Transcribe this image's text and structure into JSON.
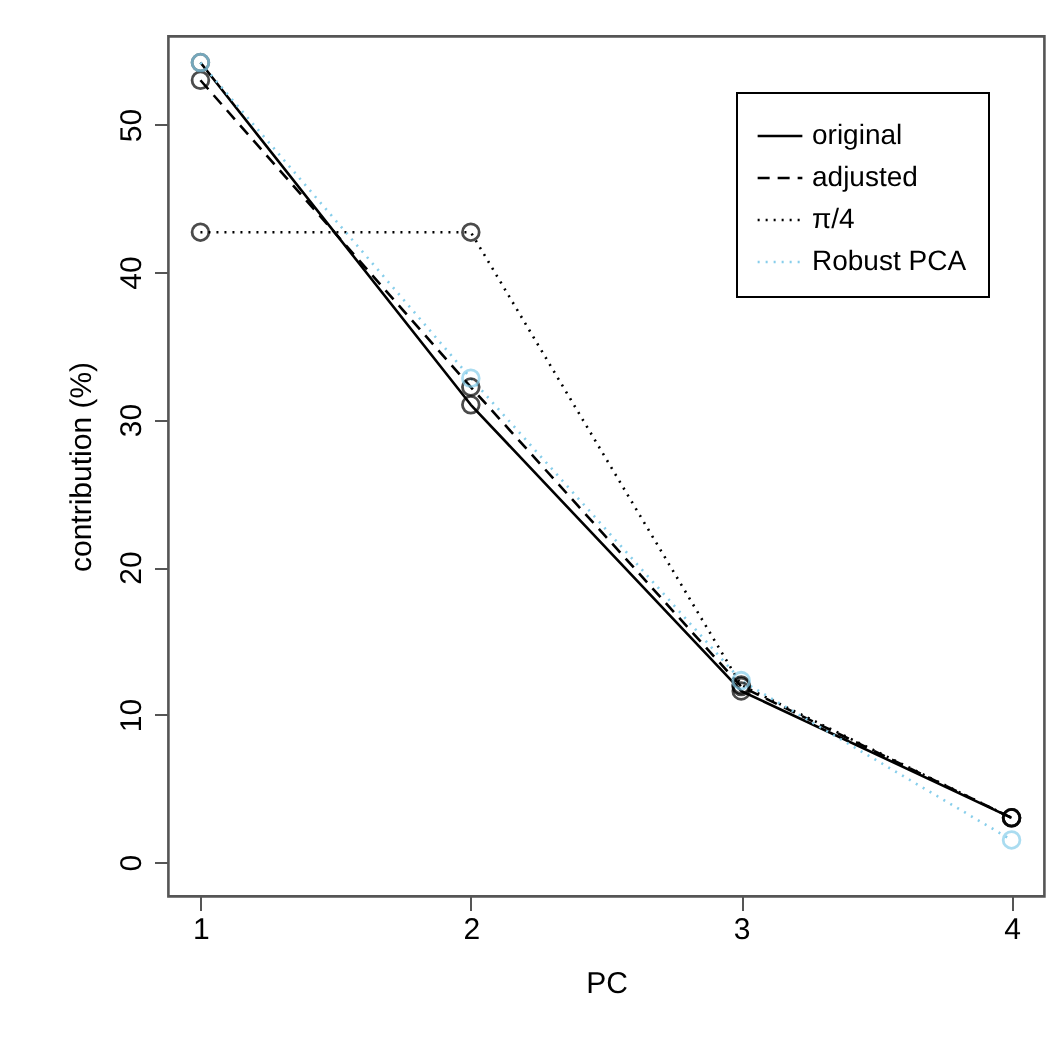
{
  "chart_data": {
    "type": "line",
    "xlabel": "PC",
    "ylabel": "contribution (%)",
    "x": [
      1,
      2,
      3,
      4
    ],
    "series": [
      {
        "name": "original",
        "color": "#000000",
        "line_style": "solid",
        "values": [
          54.2,
          31.0,
          11.6,
          3.0
        ]
      },
      {
        "name": "adjusted",
        "color": "#000000",
        "line_style": "dashed",
        "values": [
          53.0,
          32.2,
          11.9,
          3.0
        ]
      },
      {
        "name": "π/4",
        "color": "#000000",
        "line_style": "dotted",
        "values": [
          42.7,
          42.7,
          12.0,
          3.0
        ]
      },
      {
        "name": "Robust PCA",
        "color": "#87ceeb",
        "line_style": "dotted",
        "values": [
          54.2,
          32.8,
          12.3,
          1.5
        ]
      }
    ],
    "xlim": [
      0.88,
      4.12
    ],
    "xticks": [
      1,
      2,
      3,
      4
    ],
    "ylim": [
      -2.3,
      56
    ],
    "yticks": [
      0,
      10,
      20,
      30,
      40,
      50
    ],
    "marker": "circle",
    "legend": "top right",
    "grid": false
  }
}
